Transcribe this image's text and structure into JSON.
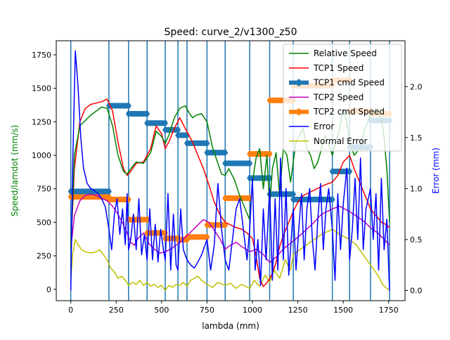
{
  "chart_data": {
    "type": "line",
    "title": "Speed: curve_2/v1300_z50",
    "xlabel": "lambda (mm)",
    "ylabel_left": "Speed/lamdot (mm/s)",
    "ylabel_right": "Error (mm)",
    "xlim": [
      -80,
      1840
    ],
    "ylim_left": [
      -85,
      1855
    ],
    "ylim_right": [
      -0.1,
      2.45
    ],
    "x_ticks": [
      0,
      250,
      500,
      750,
      1000,
      1250,
      1500,
      1750
    ],
    "y_left_ticks": [
      0,
      250,
      500,
      750,
      1000,
      1250,
      1500,
      1750
    ],
    "y_right_ticks": [
      0.0,
      0.5,
      1.0,
      1.5,
      2.0
    ],
    "vlines": [
      0,
      210,
      318,
      420,
      520,
      590,
      640,
      750,
      850,
      985,
      1095,
      1225,
      1440,
      1535,
      1650,
      1755
    ],
    "legend_position": "upper right",
    "colors": {
      "relative": "#008000",
      "tcp1": "#ff0000",
      "tcp1_cmd": "#1f77b4",
      "tcp2": "#bf00bf",
      "tcp2_cmd": "#ff7f0e",
      "error": "#0000ff",
      "normal_error": "#bfbf00",
      "vline": "#1f77b4"
    },
    "series": [
      {
        "name": "Relative Speed",
        "axis": "left",
        "color": "#008000",
        "x": [
          0,
          20,
          50,
          80,
          110,
          140,
          170,
          200,
          230,
          260,
          290,
          310,
          330,
          360,
          400,
          440,
          470,
          500,
          520,
          540,
          570,
          600,
          630,
          650,
          670,
          690,
          720,
          750,
          780,
          800,
          830,
          850,
          870,
          900,
          930,
          960,
          985,
          1000,
          1020,
          1040,
          1060,
          1080,
          1095,
          1110,
          1130,
          1150,
          1170,
          1190,
          1210,
          1225,
          1240,
          1260,
          1280,
          1300,
          1320,
          1340,
          1360,
          1380,
          1400,
          1420,
          1440,
          1460,
          1480,
          1500,
          1520,
          1535,
          1560,
          1590,
          1620,
          1650,
          1680,
          1700,
          1720,
          1740,
          1755
        ],
        "y": [
          300,
          1000,
          1220,
          1260,
          1300,
          1330,
          1360,
          1350,
          1220,
          1000,
          880,
          860,
          900,
          950,
          940,
          1020,
          1180,
          1140,
          1090,
          1150,
          1280,
          1350,
          1370,
          1320,
          1280,
          1300,
          1310,
          1250,
          1060,
          980,
          860,
          850,
          900,
          820,
          700,
          600,
          520,
          800,
          980,
          1050,
          750,
          1000,
          620,
          900,
          1020,
          700,
          1050,
          1000,
          800,
          950,
          1100,
          1150,
          1200,
          1050,
          1000,
          900,
          950,
          1050,
          1150,
          1080,
          1000,
          1100,
          1200,
          1350,
          1250,
          1100,
          1000,
          1050,
          1200,
          1300,
          1350,
          1300,
          1200,
          900,
          500
        ]
      },
      {
        "name": "TCP1 Speed",
        "axis": "left",
        "color": "#ff0000",
        "x": [
          0,
          20,
          50,
          80,
          110,
          140,
          170,
          200,
          230,
          260,
          290,
          310,
          330,
          360,
          400,
          440,
          470,
          500,
          520,
          540,
          570,
          600,
          630,
          650,
          670,
          700,
          730,
          760,
          790,
          820,
          850,
          880,
          910,
          940,
          970,
          985,
          1000,
          1020,
          1040,
          1060,
          1080,
          1095,
          1110,
          1130,
          1150,
          1170,
          1200,
          1225,
          1250,
          1280,
          1310,
          1340,
          1370,
          1400,
          1440,
          1470,
          1500,
          1535,
          1560,
          1590,
          1620,
          1650,
          1680,
          1710,
          1740,
          1755
        ],
        "y": [
          300,
          900,
          1250,
          1350,
          1380,
          1390,
          1400,
          1420,
          1330,
          1100,
          900,
          850,
          880,
          940,
          950,
          1050,
          1220,
          1160,
          1050,
          1100,
          1200,
          1280,
          1200,
          1150,
          1100,
          1000,
          900,
          780,
          650,
          560,
          500,
          480,
          460,
          450,
          420,
          400,
          380,
          250,
          80,
          20,
          50,
          80,
          120,
          200,
          320,
          400,
          500,
          580,
          650,
          700,
          720,
          740,
          760,
          780,
          800,
          850,
          950,
          1000,
          900,
          800,
          700,
          600,
          550,
          500,
          480,
          460
        ]
      },
      {
        "name": "TCP1 cmd Speed",
        "axis": "left",
        "color": "#1f77b4",
        "steps": [
          [
            0,
            210,
            730
          ],
          [
            210,
            318,
            1370
          ],
          [
            318,
            420,
            1310
          ],
          [
            420,
            520,
            1240
          ],
          [
            520,
            590,
            1190
          ],
          [
            590,
            640,
            1150
          ],
          [
            640,
            750,
            1090
          ],
          [
            750,
            850,
            1020
          ],
          [
            850,
            985,
            940
          ],
          [
            985,
            1095,
            830
          ],
          [
            1095,
            1225,
            710
          ],
          [
            1225,
            1440,
            670
          ],
          [
            1440,
            1535,
            880
          ],
          [
            1535,
            1650,
            1060
          ],
          [
            1650,
            1755,
            1260
          ]
        ]
      },
      {
        "name": "TCP2 Speed",
        "axis": "left",
        "color": "#bf00bf",
        "x": [
          0,
          20,
          50,
          80,
          110,
          140,
          170,
          200,
          230,
          260,
          290,
          310,
          330,
          350,
          370,
          400,
          430,
          460,
          490,
          520,
          550,
          580,
          610,
          640,
          670,
          700,
          730,
          760,
          790,
          820,
          850,
          880,
          910,
          940,
          985,
          1020,
          1060,
          1095,
          1130,
          1170,
          1225,
          1260,
          1300,
          1340,
          1380,
          1440,
          1480,
          1535,
          1580,
          1620,
          1650,
          1690,
          1720,
          1755
        ],
        "y": [
          300,
          550,
          660,
          700,
          710,
          700,
          680,
          660,
          620,
          560,
          480,
          420,
          350,
          330,
          380,
          420,
          340,
          300,
          270,
          280,
          300,
          330,
          360,
          400,
          440,
          480,
          520,
          500,
          440,
          380,
          300,
          330,
          350,
          320,
          280,
          300,
          260,
          200,
          240,
          300,
          360,
          400,
          450,
          500,
          560,
          600,
          620,
          580,
          540,
          500,
          460,
          420,
          380,
          330
        ]
      },
      {
        "name": "TCP2 cmd Speed",
        "axis": "left",
        "color": "#ff7f0e",
        "steps": [
          [
            0,
            210,
            690
          ],
          [
            210,
            318,
            670
          ],
          [
            318,
            420,
            520
          ],
          [
            420,
            520,
            420
          ],
          [
            520,
            590,
            380
          ],
          [
            590,
            640,
            370
          ],
          [
            640,
            750,
            390
          ],
          [
            750,
            850,
            480
          ],
          [
            850,
            985,
            680
          ],
          [
            985,
            1095,
            1010
          ],
          [
            1095,
            1225,
            1410
          ],
          [
            1225,
            1440,
            1520
          ],
          [
            1440,
            1535,
            1560
          ],
          [
            1535,
            1650,
            1330
          ],
          [
            1650,
            1755,
            1310
          ]
        ]
      },
      {
        "name": "Error",
        "axis": "right",
        "color": "#0000ff",
        "x": [
          0,
          10,
          25,
          40,
          55,
          70,
          90,
          110,
          130,
          150,
          170,
          190,
          210,
          225,
          240,
          255,
          270,
          285,
          300,
          310,
          318,
          330,
          345,
          360,
          375,
          390,
          405,
          420,
          435,
          450,
          465,
          480,
          495,
          510,
          520,
          535,
          550,
          565,
          580,
          590,
          605,
          620,
          640,
          660,
          680,
          700,
          720,
          750,
          770,
          790,
          810,
          830,
          850,
          870,
          890,
          910,
          930,
          950,
          970,
          985,
          1000,
          1015,
          1030,
          1045,
          1060,
          1075,
          1095,
          1110,
          1125,
          1140,
          1155,
          1170,
          1185,
          1200,
          1225,
          1240,
          1255,
          1270,
          1285,
          1300,
          1315,
          1330,
          1345,
          1360,
          1375,
          1390,
          1405,
          1420,
          1440,
          1455,
          1470,
          1485,
          1500,
          1520,
          1535,
          1550,
          1565,
          1580,
          1595,
          1610,
          1625,
          1650,
          1665,
          1680,
          1695,
          1710,
          1725,
          1740,
          1755
        ],
        "y": [
          0.0,
          1.2,
          2.35,
          2.0,
          1.5,
          1.2,
          1.05,
          1.0,
          0.98,
          0.95,
          0.9,
          0.82,
          0.6,
          0.4,
          0.75,
          0.9,
          0.55,
          0.8,
          0.45,
          0.95,
          0.4,
          0.5,
          0.75,
          0.4,
          0.9,
          0.35,
          0.55,
          0.3,
          0.8,
          0.3,
          0.65,
          0.28,
          0.6,
          0.4,
          0.3,
          0.95,
          0.2,
          0.75,
          0.25,
          0.2,
          0.8,
          0.4,
          0.3,
          0.25,
          0.22,
          0.28,
          0.35,
          0.5,
          0.2,
          0.45,
          1.05,
          0.6,
          0.3,
          0.2,
          0.5,
          0.8,
          0.9,
          0.6,
          0.3,
          0.6,
          1.1,
          0.2,
          0.5,
          0.05,
          0.8,
          0.3,
          1.0,
          0.1,
          0.9,
          0.2,
          1.3,
          0.3,
          1.0,
          0.15,
          0.8,
          0.2,
          0.6,
          0.95,
          0.3,
          0.8,
          1.0,
          0.5,
          0.2,
          0.7,
          1.05,
          0.4,
          0.8,
          1.0,
          0.6,
          0.1,
          0.95,
          0.4,
          0.85,
          1.2,
          0.3,
          0.6,
          1.1,
          0.5,
          1.3,
          0.4,
          0.8,
          1.0,
          0.5,
          0.95,
          0.2,
          1.1,
          0.4,
          0.7,
          0.0
        ]
      },
      {
        "name": "Normal Error",
        "axis": "right",
        "color": "#bfbf00",
        "x": [
          0,
          10,
          25,
          40,
          60,
          80,
          100,
          120,
          140,
          160,
          180,
          200,
          220,
          240,
          260,
          280,
          300,
          318,
          340,
          360,
          380,
          400,
          420,
          440,
          460,
          480,
          500,
          520,
          540,
          560,
          580,
          600,
          620,
          640,
          660,
          680,
          700,
          720,
          750,
          780,
          810,
          850,
          880,
          910,
          940,
          985,
          1010,
          1040,
          1070,
          1095,
          1120,
          1150,
          1180,
          1210,
          1225,
          1260,
          1300,
          1340,
          1380,
          1440,
          1480,
          1535,
          1570,
          1610,
          1650,
          1690,
          1720,
          1755
        ],
        "y": [
          0.1,
          0.35,
          0.5,
          0.45,
          0.4,
          0.38,
          0.37,
          0.37,
          0.38,
          0.4,
          0.35,
          0.3,
          0.22,
          0.18,
          0.12,
          0.14,
          0.1,
          0.05,
          0.08,
          0.06,
          0.1,
          0.05,
          0.08,
          0.04,
          0.06,
          0.03,
          0.05,
          0.0,
          0.05,
          0.03,
          0.06,
          0.05,
          0.08,
          0.04,
          0.1,
          0.12,
          0.14,
          0.1,
          0.06,
          0.03,
          0.08,
          0.05,
          0.07,
          0.02,
          0.06,
          0.02,
          0.1,
          0.04,
          0.15,
          0.08,
          0.2,
          0.12,
          0.3,
          0.2,
          0.35,
          0.4,
          0.45,
          0.5,
          0.55,
          0.6,
          0.55,
          0.5,
          0.45,
          0.35,
          0.25,
          0.15,
          0.05,
          0.0
        ]
      }
    ]
  }
}
